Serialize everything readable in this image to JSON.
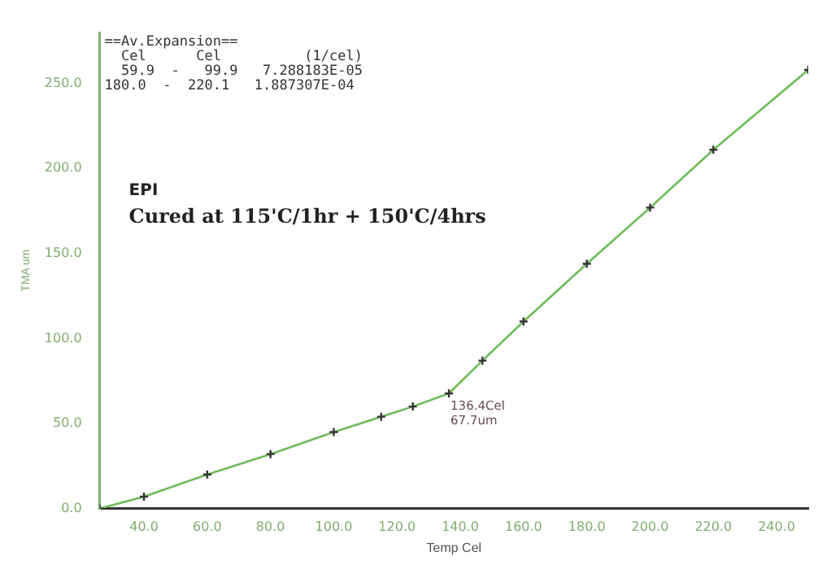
{
  "chart_data": {
    "type": "line",
    "xlabel": "Temp Cel",
    "ylabel": "TMA um",
    "x": [
      26,
      40,
      60,
      80,
      100,
      115,
      125,
      136.4,
      147,
      160,
      180,
      200,
      220,
      250
    ],
    "series": [
      {
        "color": "#6dbb5a",
        "values": [
          0,
          7,
          20,
          32,
          45,
          54,
          60,
          67.7,
          87,
          110,
          144,
          177,
          211,
          258
        ]
      }
    ],
    "xlim": [
      26,
      250
    ],
    "xticks": [
      {
        "value": 40,
        "label": "40.0"
      },
      {
        "value": 60,
        "label": "60.0"
      },
      {
        "value": 80,
        "label": "80.0"
      },
      {
        "value": 100,
        "label": "100.0"
      },
      {
        "value": 120,
        "label": "120.0"
      },
      {
        "value": 140,
        "label": "140.0"
      },
      {
        "value": 160,
        "label": "160.0"
      },
      {
        "value": 180,
        "label": "180.0"
      },
      {
        "value": 200,
        "label": "200.0"
      },
      {
        "value": 220,
        "label": "220.0"
      },
      {
        "value": 240,
        "label": "240.0"
      }
    ],
    "ylim": [
      0,
      280
    ],
    "yticks": [
      {
        "value": 0,
        "label": "0.0"
      },
      {
        "value": 50,
        "label": "50.0"
      },
      {
        "value": 100,
        "label": "100.0"
      },
      {
        "value": 150,
        "label": "150.0"
      },
      {
        "value": 200,
        "label": "200.0"
      },
      {
        "value": 250,
        "label": "250.0"
      }
    ],
    "grid": false,
    "legend": false,
    "marker": "cross",
    "line_style": "solid",
    "annotations": [
      "==Av.Expansion==",
      "  Cel      Cel          (1/cel)",
      "  59.9  -   99.9   7.288183E-05",
      "180.0  -  220.1   1.887307E-04",
      "EPI",
      "Cured at 115'C/1hr + 150'C/4hrs",
      {
        "text": "136.4Cel",
        "x": 136.4,
        "y": 67.7
      },
      {
        "text": "67.7um",
        "x": 136.4,
        "y": 67.7
      }
    ]
  }
}
